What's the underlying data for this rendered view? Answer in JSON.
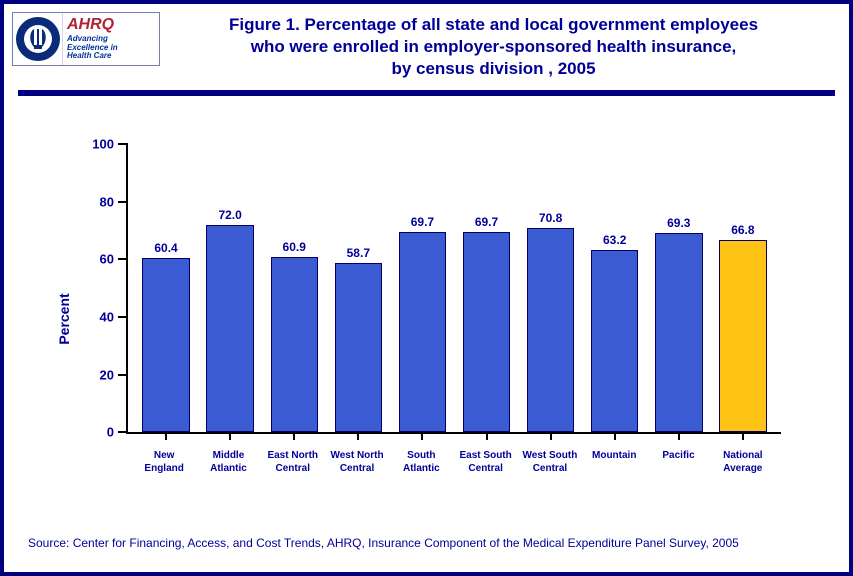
{
  "logo": {
    "ahrq": "AHRQ",
    "tagline1": "Advancing",
    "tagline2": "Excellence in",
    "tagline3": "Health Care"
  },
  "title": {
    "line1": "Figure 1. Percentage of all state and local government employees",
    "line2": "who were enrolled in employer-sponsored health insurance,",
    "line3": "by census division , 2005"
  },
  "chart": {
    "type": "bar",
    "ylabel": "Percent",
    "ylim": [
      0,
      100
    ],
    "ytick_step": 20,
    "yticks": [
      0,
      20,
      40,
      60,
      80,
      100
    ],
    "background_color": "#ffffff",
    "axis_color": "#000000",
    "text_color": "#000099",
    "bar_default_color": "#3b5bd3",
    "bar_highlight_color": "#ffc316",
    "bar_border_color": "#000066",
    "value_fontsize": 12,
    "label_fontsize": 10,
    "categories": [
      {
        "label": "New England",
        "value": 60.4,
        "color": "#3b5bd3"
      },
      {
        "label": "Middle Atlantic",
        "value": 72.0,
        "color": "#3b5bd3"
      },
      {
        "label": "East North Central",
        "value": 60.9,
        "color": "#3b5bd3"
      },
      {
        "label": "West North Central",
        "value": 58.7,
        "color": "#3b5bd3"
      },
      {
        "label": "South Atlantic",
        "value": 69.7,
        "color": "#3b5bd3"
      },
      {
        "label": "East South Central",
        "value": 69.7,
        "color": "#3b5bd3"
      },
      {
        "label": "West South Central",
        "value": 70.8,
        "color": "#3b5bd3"
      },
      {
        "label": "Mountain",
        "value": 63.2,
        "color": "#3b5bd3"
      },
      {
        "label": "Pacific",
        "value": 69.3,
        "color": "#3b5bd3"
      },
      {
        "label": "National Average",
        "value": 66.8,
        "color": "#ffc316"
      }
    ]
  },
  "source": "Source: Center for Financing, Access, and Cost Trends, AHRQ, Insurance Component of the Medical Expenditure Panel Survey, 2005"
}
